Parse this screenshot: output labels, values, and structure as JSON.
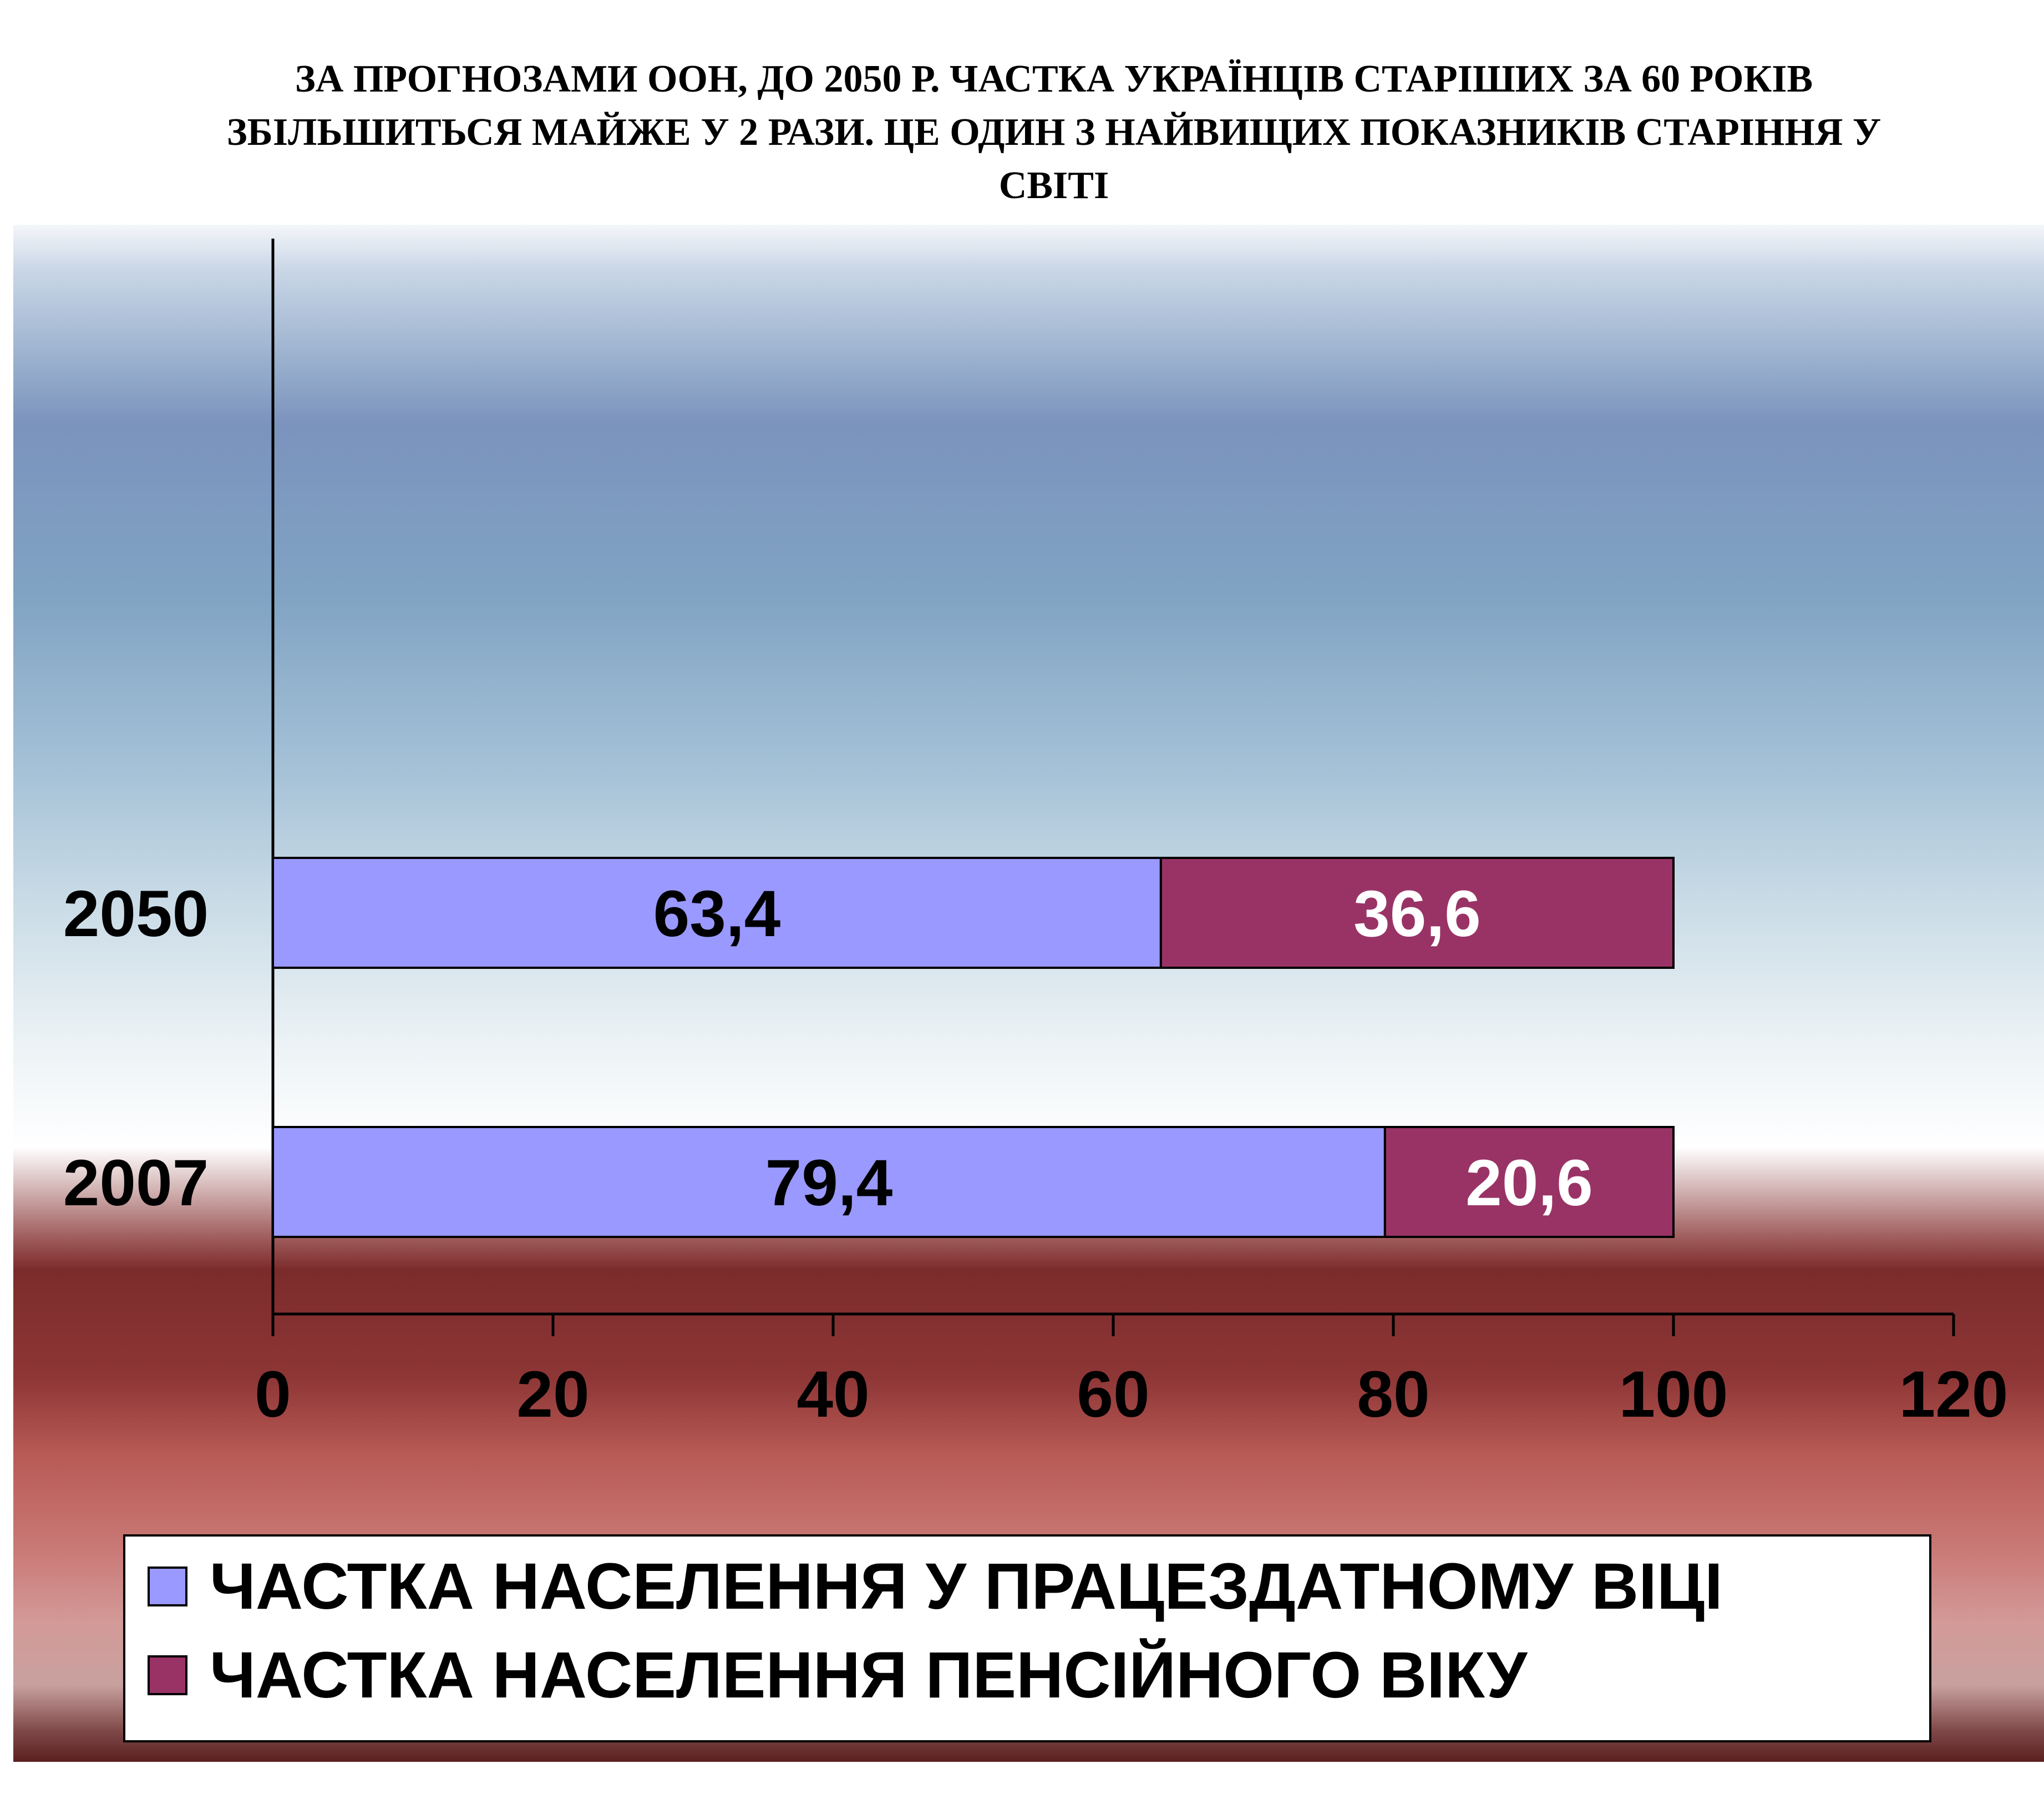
{
  "title_lines": [
    "ЗА ПРОГНОЗАМИ ООН, ДО 2050 Р. ЧАСТКА УКРАЇНЦІВ СТАРІШИХ ЗА 60 РОКІВ",
    "ЗБІЛЬШИТЬСЯ МАЙЖЕ У 2 РАЗИ. ЦЕ ОДИН З НАЙВИЩИХ ПОКАЗНИКІВ СТАРІННЯ У",
    "СВІТІ"
  ],
  "chart_data": {
    "type": "bar",
    "orientation": "horizontal",
    "stacked": true,
    "categories": [
      "2050",
      "2007"
    ],
    "series": [
      {
        "name": "ЧАСТКА НАСЕЛЕННЯ У ПРАЦЕЗДАТНОМУ ВІЦІ",
        "values": [
          63.4,
          79.4
        ],
        "labels": [
          "63,4",
          "79,4"
        ],
        "color": "#9999ff",
        "label_color": "#000000"
      },
      {
        "name": "ЧАСТКА НАСЕЛЕННЯ ПЕНСІЙНОГО ВІКУ",
        "values": [
          36.6,
          20.6
        ],
        "labels": [
          "36,6",
          "20,6"
        ],
        "color": "#993366",
        "label_color": "#ffffff"
      }
    ],
    "xlim": [
      0,
      120
    ],
    "xticks": [
      0,
      20,
      40,
      60,
      80,
      100,
      120
    ],
    "grid": false,
    "legend_position": "bottom"
  }
}
